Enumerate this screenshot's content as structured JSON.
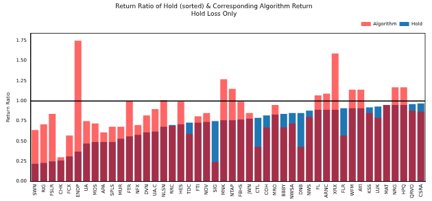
{
  "chart_data": {
    "type": "bar",
    "title": "Return Ratio of Hold (sorted) & Corresponding Algorithm Return",
    "subtitle": "Hold Loss Only",
    "y_label": "Return Ratio",
    "categories": [
      "SWN",
      "RIG",
      "FSLR",
      "CHK",
      "FCX",
      "ENDP",
      "UA",
      "MOS",
      "APA",
      "SPLS",
      "MUR",
      "FTR",
      "NFX",
      "DVN",
      "UA.C",
      "NLSN",
      "RRC",
      "HES",
      "TDC",
      "FTI",
      "NOV",
      "SIG",
      "MNK",
      "NTAP",
      "FBHS",
      "JWN",
      "CTL",
      "COH",
      "MRO",
      "BBBY",
      "NWSA",
      "DNB",
      "NWS",
      "FL",
      "ARNC",
      "XRX",
      "FLR",
      "WFM",
      "AYI",
      "KSS",
      "LUK",
      "MAT",
      "NRG",
      "HPQ",
      "QRVO",
      "CSRA"
    ],
    "series": [
      {
        "name": "Hold",
        "color": "#1f77b4",
        "values": [
          0.22,
          0.23,
          0.25,
          0.26,
          0.31,
          0.37,
          0.47,
          0.49,
          0.49,
          0.49,
          0.53,
          0.56,
          0.58,
          0.61,
          0.62,
          0.68,
          0.7,
          0.71,
          0.73,
          0.73,
          0.74,
          0.75,
          0.76,
          0.76,
          0.77,
          0.78,
          0.79,
          0.82,
          0.83,
          0.84,
          0.85,
          0.85,
          0.88,
          0.89,
          0.89,
          0.89,
          0.91,
          0.91,
          0.91,
          0.92,
          0.93,
          0.95,
          0.95,
          0.95,
          0.96,
          0.97
        ]
      },
      {
        "name": "Algorithm",
        "color": "#ff0000",
        "values": [
          0.64,
          0.71,
          0.84,
          0.3,
          0.57,
          1.75,
          0.75,
          0.72,
          0.61,
          0.68,
          0.68,
          1.0,
          0.7,
          0.82,
          0.9,
          1.01,
          0.69,
          0.99,
          0.59,
          0.81,
          0.85,
          0.24,
          1.27,
          1.15,
          0.99,
          0.85,
          0.43,
          0.67,
          0.95,
          0.67,
          0.72,
          0.43,
          0.8,
          1.07,
          1.09,
          1.59,
          0.57,
          1.14,
          1.14,
          0.85,
          0.79,
          0.95,
          1.17,
          1.17,
          0.88,
          0.87
        ]
      }
    ],
    "hline": 1.0,
    "ylim": [
      0,
      1.84
    ],
    "yticks": [
      {
        "value": 0,
        "label": "0.00"
      },
      {
        "value": 0.25,
        "label": "0.25"
      },
      {
        "value": 0.5,
        "label": "0.50"
      },
      {
        "value": 0.75,
        "label": "0.75"
      },
      {
        "value": 1,
        "label": "1.00"
      },
      {
        "value": 1.25,
        "label": "1.25"
      },
      {
        "value": 1.5,
        "label": "1.50"
      },
      {
        "value": 1.75,
        "label": "1.75"
      }
    ],
    "grid": false,
    "legend": "upper right"
  }
}
